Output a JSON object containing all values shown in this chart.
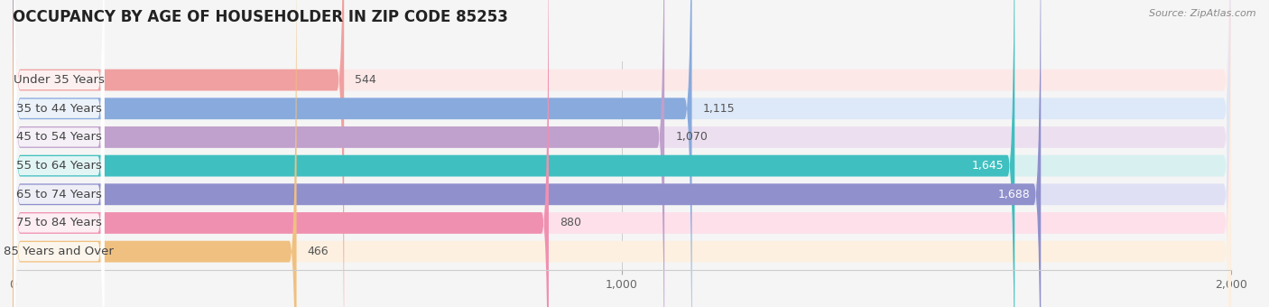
{
  "title": "OCCUPANCY BY AGE OF HOUSEHOLDER IN ZIP CODE 85253",
  "source": "Source: ZipAtlas.com",
  "categories": [
    "Under 35 Years",
    "35 to 44 Years",
    "45 to 54 Years",
    "55 to 64 Years",
    "65 to 74 Years",
    "75 to 84 Years",
    "85 Years and Over"
  ],
  "values": [
    544,
    1115,
    1070,
    1645,
    1688,
    880,
    466
  ],
  "bar_colors": [
    "#f0a0a0",
    "#88aadd",
    "#c0a0cc",
    "#40bfc0",
    "#9090cc",
    "#f090b0",
    "#f0c080"
  ],
  "bar_bg_colors": [
    "#fde8e8",
    "#dde8f8",
    "#ece0f0",
    "#d8f0f0",
    "#e0e0f5",
    "#fde0ea",
    "#fdf0e0"
  ],
  "xlim": [
    0,
    2000
  ],
  "xticks": [
    0,
    1000,
    2000
  ],
  "background_color": "#f5f5f5",
  "title_fontsize": 12,
  "label_fontsize": 9.5,
  "value_fontsize": 9
}
